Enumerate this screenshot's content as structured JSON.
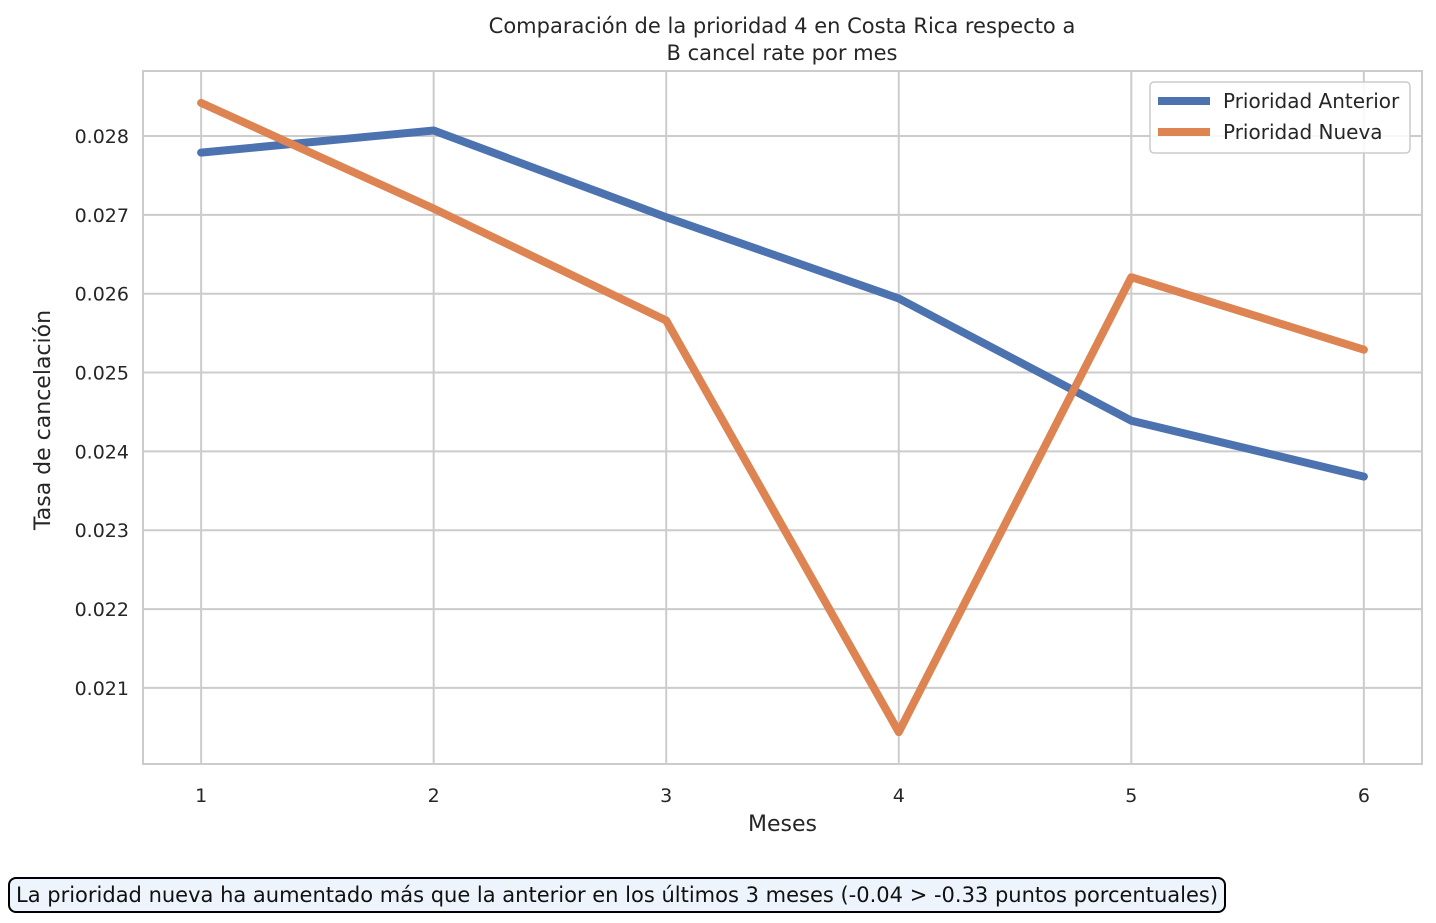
{
  "chart_data": {
    "type": "line",
    "title": "Comparación de la prioridad 4 en Costa Rica respecto a\nB cancel rate por mes",
    "title_lines": [
      "Comparación de la prioridad 4 en Costa Rica respecto a",
      "B cancel rate por mes"
    ],
    "xlabel": "Meses",
    "ylabel": "Tasa de cancelación",
    "x": [
      1,
      2,
      3,
      4,
      5,
      6
    ],
    "x_ticks": [
      "1",
      "2",
      "3",
      "4",
      "5",
      "6"
    ],
    "y_ticks": [
      "0.021",
      "0.022",
      "0.023",
      "0.024",
      "0.025",
      "0.026",
      "0.027",
      "0.028"
    ],
    "xlim": [
      0.75,
      6.25
    ],
    "ylim": [
      0.020035,
      0.028825
    ],
    "grid": true,
    "legend_position": "top-right",
    "series": [
      {
        "name": "Prioridad Anterior",
        "color": "#4c72b0",
        "values": [
          0.02779,
          0.02807,
          0.02697,
          0.02594,
          0.02439,
          0.02368
        ]
      },
      {
        "name": "Prioridad Nueva",
        "color": "#dd8452",
        "values": [
          0.02842,
          0.02708,
          0.02566,
          0.02044,
          0.02621,
          0.02529
        ]
      }
    ]
  },
  "note": "La prioridad nueva ha aumentado más que la anterior en los últimos 3 meses (-0.04 > -0.33 puntos porcentuales)"
}
